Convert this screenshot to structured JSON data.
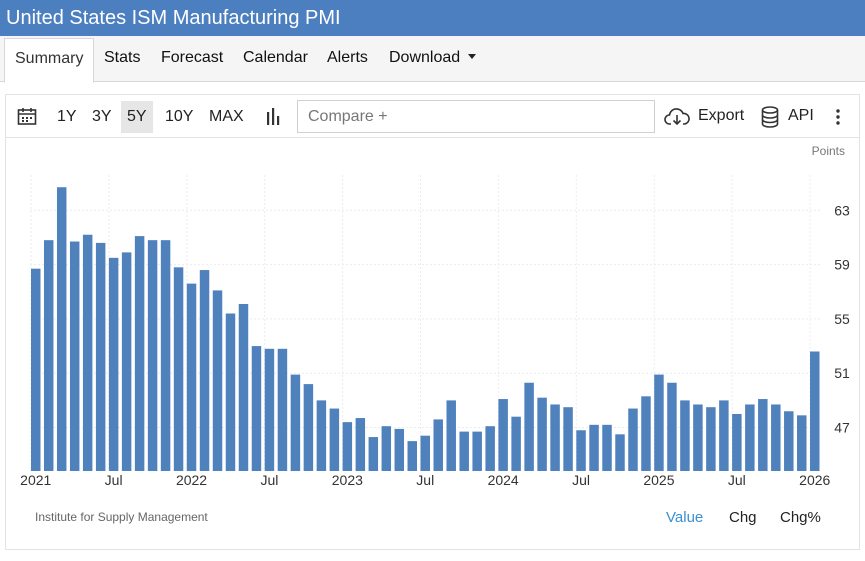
{
  "header": {
    "title": "United States ISM Manufacturing PMI"
  },
  "nav": {
    "tabs": [
      {
        "label": "Summary",
        "active": true
      },
      {
        "label": "Stats"
      },
      {
        "label": "Forecast"
      },
      {
        "label": "Calendar"
      },
      {
        "label": "Alerts"
      },
      {
        "label": "Download",
        "dropdown": true
      }
    ]
  },
  "toolbar": {
    "calendar_icon": "calendar-icon",
    "ranges": [
      "1Y",
      "3Y",
      "5Y",
      "10Y",
      "MAX"
    ],
    "selected_range": "5Y",
    "chart_type_icon": "bar-chart-icon",
    "compare_placeholder": "Compare +",
    "export_icon": "cloud-download-icon",
    "export_label": "Export",
    "api_icon": "database-icon",
    "api_label": "API",
    "more_icon": "kebab-menu-icon"
  },
  "colors": {
    "accent": "#4c7fbf",
    "bar": "#4f81bd",
    "active_link": "#3b8fd1"
  },
  "chart_data": {
    "type": "bar",
    "title": "United States ISM Manufacturing PMI",
    "unit_label": "Points",
    "ylim": [
      43.8,
      65.6
    ],
    "yticks": [
      47,
      51,
      55,
      59,
      63
    ],
    "grid": true,
    "x_labels": [
      "2021",
      "Jul",
      "2022",
      "Jul",
      "2023",
      "Jul",
      "2024",
      "Jul",
      "2025",
      "Jul",
      "2026"
    ],
    "x_label_positions": [
      0,
      6,
      12,
      18,
      24,
      30,
      36,
      42,
      48,
      54,
      60
    ],
    "categories": [
      "Jan 2021",
      "Feb 2021",
      "Mar 2021",
      "Apr 2021",
      "May 2021",
      "Jun 2021",
      "Jul 2021",
      "Aug 2021",
      "Sep 2021",
      "Oct 2021",
      "Nov 2021",
      "Dec 2021",
      "Jan 2022",
      "Feb 2022",
      "Mar 2022",
      "Apr 2022",
      "May 2022",
      "Jun 2022",
      "Jul 2022",
      "Aug 2022",
      "Sep 2022",
      "Oct 2022",
      "Nov 2022",
      "Dec 2022",
      "Jan 2023",
      "Feb 2023",
      "Mar 2023",
      "Apr 2023",
      "May 2023",
      "Jun 2023",
      "Jul 2023",
      "Aug 2023",
      "Sep 2023",
      "Oct 2023",
      "Nov 2023",
      "Dec 2023",
      "Jan 2024",
      "Feb 2024",
      "Mar 2024",
      "Apr 2024",
      "May 2024",
      "Jun 2024",
      "Jul 2024",
      "Aug 2024",
      "Sep 2024",
      "Oct 2024",
      "Nov 2024",
      "Dec 2024",
      "Jan 2025",
      "Feb 2025",
      "Mar 2025",
      "Apr 2025",
      "May 2025",
      "Jun 2025",
      "Jul 2025",
      "Aug 2025",
      "Sep 2025",
      "Oct 2025",
      "Nov 2025",
      "Dec 2025",
      "Jan 2026"
    ],
    "series": [
      {
        "name": "ISM Manufacturing PMI",
        "values": [
          58.7,
          60.8,
          64.7,
          60.7,
          61.2,
          60.6,
          59.5,
          59.9,
          61.1,
          60.8,
          60.8,
          58.8,
          57.6,
          58.6,
          57.1,
          55.4,
          56.1,
          53.0,
          52.8,
          52.8,
          50.9,
          50.2,
          49.0,
          48.4,
          47.4,
          47.7,
          46.3,
          47.1,
          46.9,
          46.0,
          46.4,
          47.6,
          49.0,
          46.7,
          46.7,
          47.1,
          49.1,
          47.8,
          50.3,
          49.2,
          48.7,
          48.5,
          46.8,
          47.2,
          47.2,
          46.5,
          48.4,
          49.3,
          50.9,
          50.3,
          49.0,
          48.7,
          48.5,
          49.0,
          48.0,
          48.7,
          49.1,
          48.7,
          48.2,
          47.9,
          52.6
        ]
      }
    ]
  },
  "footer": {
    "source": "Institute for Supply Management",
    "modes": [
      "Value",
      "Chg",
      "Chg%"
    ],
    "active_mode": "Value"
  }
}
